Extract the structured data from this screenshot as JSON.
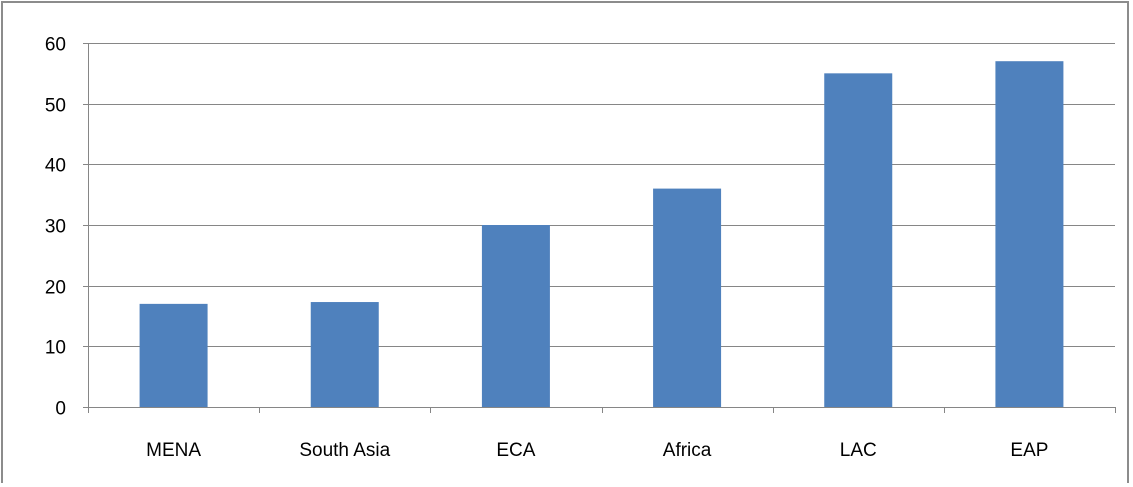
{
  "chart_data": {
    "type": "bar",
    "title": "",
    "xlabel": "",
    "ylabel": "",
    "categories": [
      "MENA",
      "South Asia",
      "ECA",
      "Africa",
      "LAC",
      "EAP"
    ],
    "values": [
      17,
      17.3,
      30,
      36,
      55,
      57
    ],
    "ylim": [
      0,
      60
    ],
    "yticks": [
      0,
      10,
      20,
      30,
      40,
      50,
      60
    ],
    "grid": true,
    "legend": "none",
    "bar_color": "#4f81bd",
    "grid_color": "#868686",
    "axis_color": "#868686"
  }
}
